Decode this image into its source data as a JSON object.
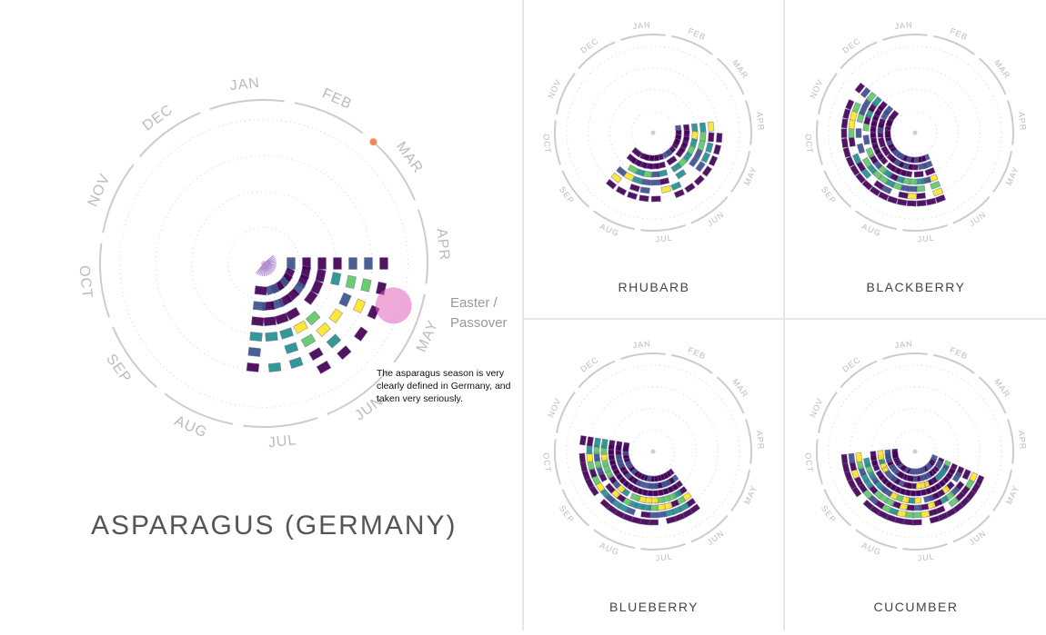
{
  "chart_data": [
    {
      "type": "radial-seasonal",
      "title": "ASPARAGUS (GERMANY)",
      "months": [
        "JAN",
        "FEB",
        "MAR",
        "APR",
        "MAY",
        "JUN",
        "JUL",
        "AUG",
        "SEP",
        "OCT",
        "NOV",
        "DEC"
      ],
      "event_label": "Easter / Passover",
      "event_month": 3.8,
      "marker_month": 1.6,
      "annotation": "The asparagus season is very clearly defined in Germany, and taken very seriously.",
      "peak_months": [
        3.6,
        4.2,
        4.8,
        5.3,
        5.8
      ],
      "active_range": [
        3.2,
        6.4
      ]
    },
    {
      "type": "radial-seasonal",
      "title": "RHUBARB",
      "months": [
        "JAN",
        "FEB",
        "MAR",
        "APR",
        "MAY",
        "JUN",
        "JUL",
        "AUG",
        "SEP",
        "OCT",
        "NOV",
        "DEC"
      ],
      "active_range": [
        3.0,
        7.5
      ]
    },
    {
      "type": "radial-seasonal",
      "title": "BLACKBERRY",
      "months": [
        "JAN",
        "FEB",
        "MAR",
        "APR",
        "MAY",
        "JUN",
        "JUL",
        "AUG",
        "SEP",
        "OCT",
        "NOV",
        "DEC"
      ],
      "active_range": [
        5.5,
        10.5
      ]
    },
    {
      "type": "radial-seasonal",
      "title": "BLUEBERRY",
      "months": [
        "JAN",
        "FEB",
        "MAR",
        "APR",
        "MAY",
        "JUN",
        "JUL",
        "AUG",
        "SEP",
        "OCT",
        "NOV",
        "DEC"
      ],
      "active_range": [
        5.0,
        9.5
      ]
    },
    {
      "type": "radial-seasonal",
      "title": "CUCUMBER",
      "months": [
        "JAN",
        "FEB",
        "MAR",
        "APR",
        "MAY",
        "JUN",
        "JUL",
        "AUG",
        "SEP",
        "OCT",
        "NOV",
        "DEC"
      ],
      "active_range": [
        4.0,
        9.0
      ]
    }
  ],
  "colors": {
    "axis": "#cccccc",
    "label": "#bbbbbb",
    "marker": "#f08a5d",
    "event": "#e062b9",
    "palette": [
      "#440154",
      "#3b528b",
      "#21918c",
      "#5ec962",
      "#fde725"
    ]
  }
}
